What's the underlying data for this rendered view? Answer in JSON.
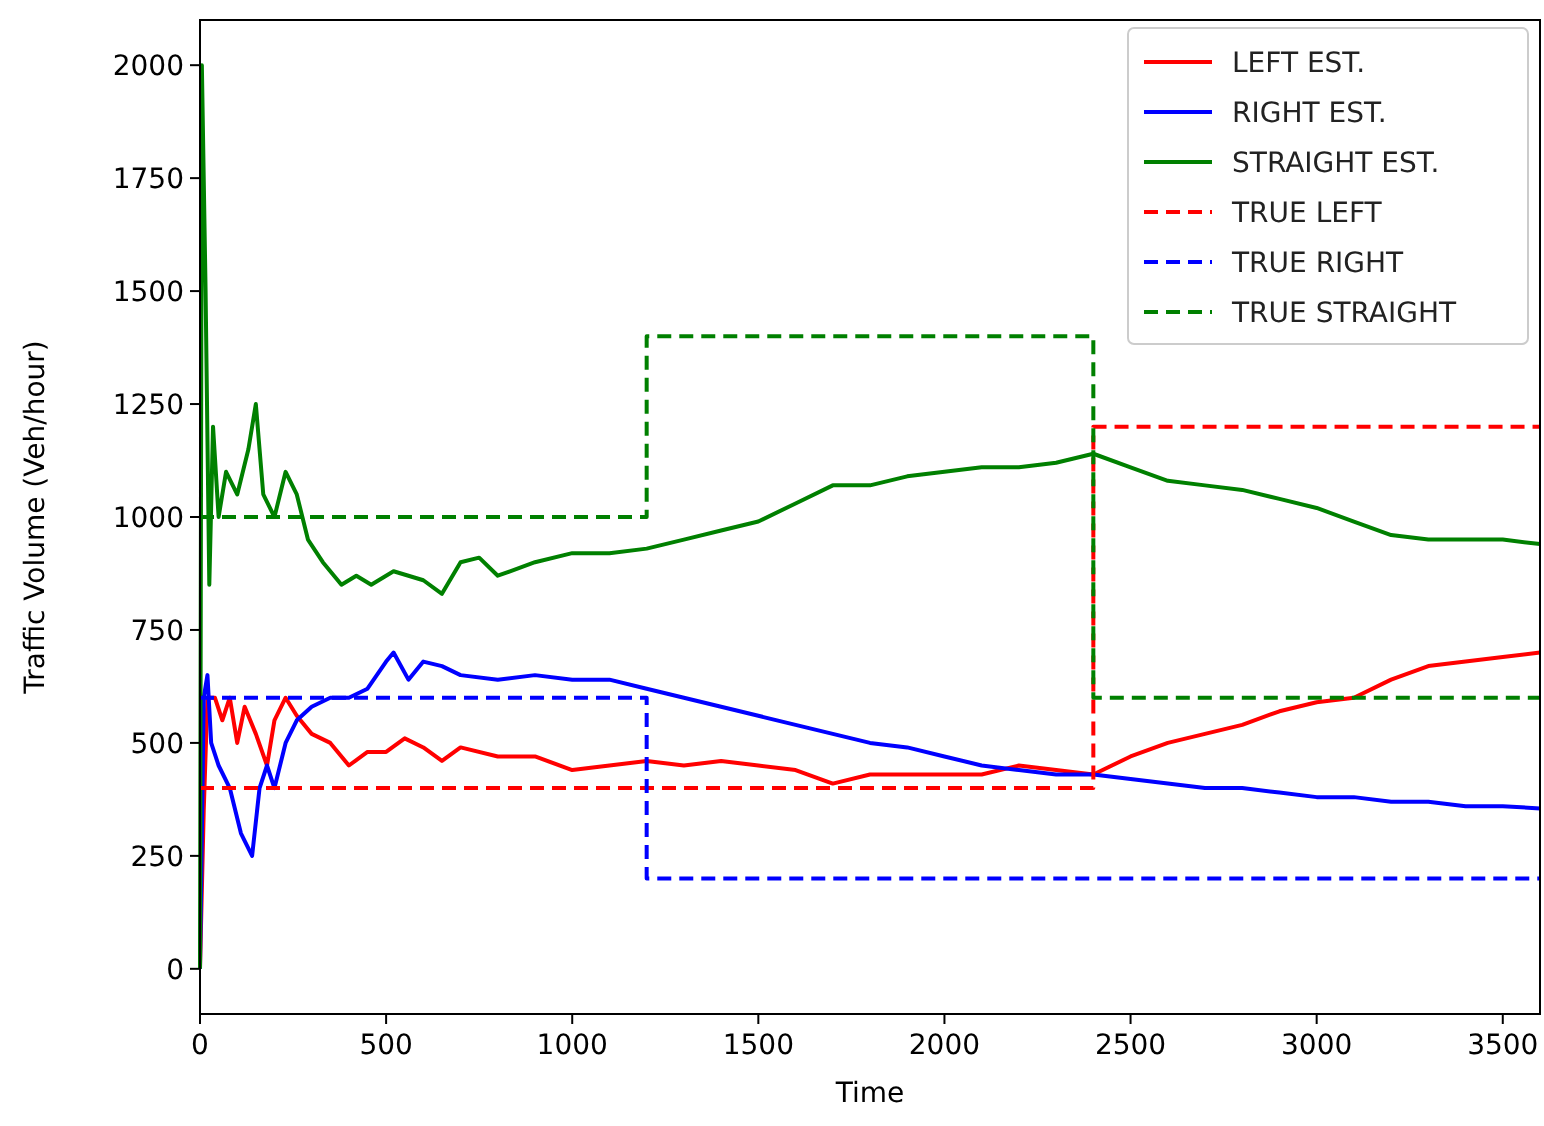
{
  "chart_data": {
    "type": "line",
    "xlabel": "Time",
    "ylabel": "Traffic Volume (Veh/hour)",
    "xlim": [
      0,
      3600
    ],
    "ylim": [
      -100,
      2100
    ],
    "xticks": [
      0,
      500,
      1000,
      1500,
      2000,
      2500,
      3000,
      3500
    ],
    "yticks": [
      0,
      250,
      500,
      750,
      1000,
      1250,
      1500,
      1750,
      2000
    ],
    "legend": "top right",
    "grid": false,
    "marker": "none",
    "series": [
      {
        "name": "LEFT EST.",
        "color": "#ff0000",
        "line_style": "solid",
        "x": [
          0,
          10,
          20,
          40,
          60,
          80,
          100,
          120,
          150,
          180,
          200,
          230,
          260,
          300,
          350,
          400,
          450,
          500,
          550,
          600,
          650,
          700,
          800,
          900,
          1000,
          1100,
          1200,
          1300,
          1400,
          1500,
          1600,
          1700,
          1800,
          1900,
          2000,
          2100,
          2200,
          2300,
          2400,
          2500,
          2600,
          2700,
          2800,
          2900,
          3000,
          3100,
          3200,
          3300,
          3400,
          3500,
          3600
        ],
        "values": [
          0,
          350,
          600,
          600,
          550,
          600,
          500,
          580,
          520,
          450,
          550,
          600,
          560,
          520,
          500,
          450,
          480,
          480,
          510,
          490,
          460,
          490,
          470,
          470,
          440,
          450,
          460,
          450,
          460,
          450,
          440,
          410,
          430,
          430,
          430,
          430,
          450,
          440,
          430,
          470,
          500,
          520,
          540,
          570,
          590,
          600,
          640,
          670,
          680,
          690,
          700
        ]
      },
      {
        "name": "RIGHT EST.",
        "color": "#0000ff",
        "line_style": "solid",
        "x": [
          0,
          10,
          20,
          30,
          50,
          80,
          110,
          140,
          160,
          180,
          200,
          230,
          260,
          300,
          350,
          400,
          450,
          500,
          520,
          560,
          600,
          650,
          700,
          800,
          900,
          1000,
          1100,
          1200,
          1300,
          1400,
          1500,
          1600,
          1700,
          1800,
          1900,
          2000,
          2100,
          2200,
          2300,
          2400,
          2500,
          2600,
          2700,
          2800,
          2900,
          3000,
          3100,
          3200,
          3300,
          3400,
          3500,
          3600
        ],
        "values": [
          0,
          600,
          650,
          500,
          450,
          400,
          300,
          250,
          400,
          450,
          400,
          500,
          550,
          580,
          600,
          600,
          620,
          680,
          700,
          640,
          680,
          670,
          650,
          640,
          650,
          640,
          640,
          620,
          600,
          580,
          560,
          540,
          520,
          500,
          490,
          470,
          450,
          440,
          430,
          430,
          420,
          410,
          400,
          400,
          390,
          380,
          380,
          370,
          370,
          360,
          360,
          355
        ]
      },
      {
        "name": "STRAIGHT EST.",
        "color": "#008000",
        "line_style": "solid",
        "x": [
          0,
          5,
          15,
          25,
          35,
          50,
          70,
          100,
          130,
          150,
          170,
          200,
          230,
          260,
          290,
          330,
          380,
          420,
          460,
          520,
          600,
          650,
          700,
          750,
          800,
          900,
          1000,
          1100,
          1200,
          1300,
          1400,
          1500,
          1600,
          1700,
          1800,
          1900,
          2000,
          2100,
          2200,
          2300,
          2400,
          2500,
          2600,
          2700,
          2800,
          2900,
          3000,
          3100,
          3200,
          3300,
          3400,
          3500,
          3600
        ],
        "values": [
          0,
          2000,
          1500,
          850,
          1200,
          1000,
          1100,
          1050,
          1150,
          1250,
          1050,
          1000,
          1100,
          1050,
          950,
          900,
          850,
          870,
          850,
          880,
          860,
          830,
          900,
          910,
          870,
          900,
          920,
          920,
          930,
          950,
          970,
          990,
          1030,
          1070,
          1070,
          1090,
          1100,
          1110,
          1110,
          1120,
          1140,
          1110,
          1080,
          1070,
          1060,
          1040,
          1020,
          990,
          960,
          950,
          950,
          950,
          940
        ]
      },
      {
        "name": "TRUE LEFT",
        "color": "#ff0000",
        "line_style": "dashed",
        "x": [
          0,
          2400,
          2400,
          3600
        ],
        "values": [
          400,
          400,
          1200,
          1200
        ]
      },
      {
        "name": "TRUE RIGHT",
        "color": "#0000ff",
        "line_style": "dashed",
        "x": [
          0,
          1200,
          1200,
          3600
        ],
        "values": [
          600,
          600,
          200,
          200
        ]
      },
      {
        "name": "TRUE STRAIGHT",
        "color": "#008000",
        "line_style": "dashed",
        "x": [
          0,
          1200,
          1200,
          2400,
          2400,
          3600
        ],
        "values": [
          1000,
          1000,
          1400,
          1400,
          600,
          600
        ]
      }
    ]
  }
}
